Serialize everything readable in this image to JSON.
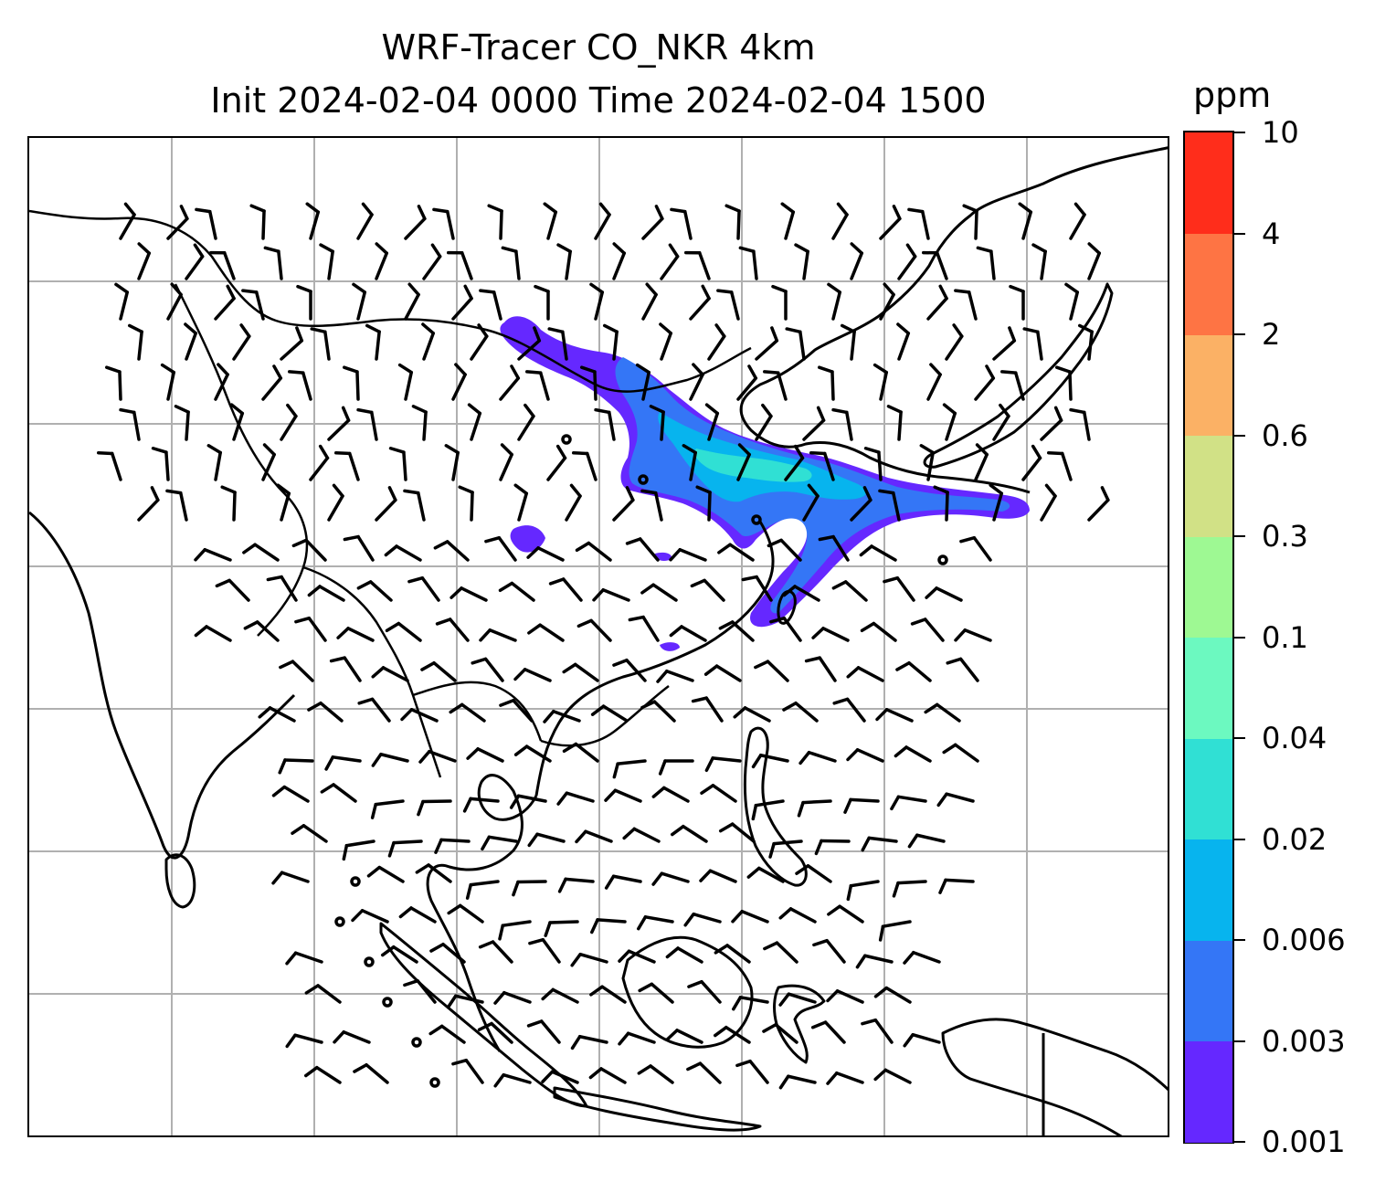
{
  "title": {
    "line1": "WRF-Tracer CO_NKR 4km",
    "line2": "Init 2024-02-04 0000 Time 2024-02-04 1500"
  },
  "map": {
    "region": "East and Southeast Asia",
    "gridlines": true,
    "coastlines": true,
    "wind_barbs": true,
    "plume_levels": [
      "0.001",
      "0.003",
      "0.006",
      "0.02"
    ]
  },
  "colorbar": {
    "unit": "ppm",
    "levels": [
      "0.001",
      "0.003",
      "0.006",
      "0.02",
      "0.04",
      "0.1",
      "0.3",
      "0.6",
      "2",
      "4",
      "10"
    ],
    "colors": [
      "#6528ff",
      "#3476f6",
      "#07b4ee",
      "#30e0d4",
      "#6cf9c0",
      "#9ef993",
      "#d1e186",
      "#fbb165",
      "#fe7444",
      "#ff2d1b"
    ]
  }
}
